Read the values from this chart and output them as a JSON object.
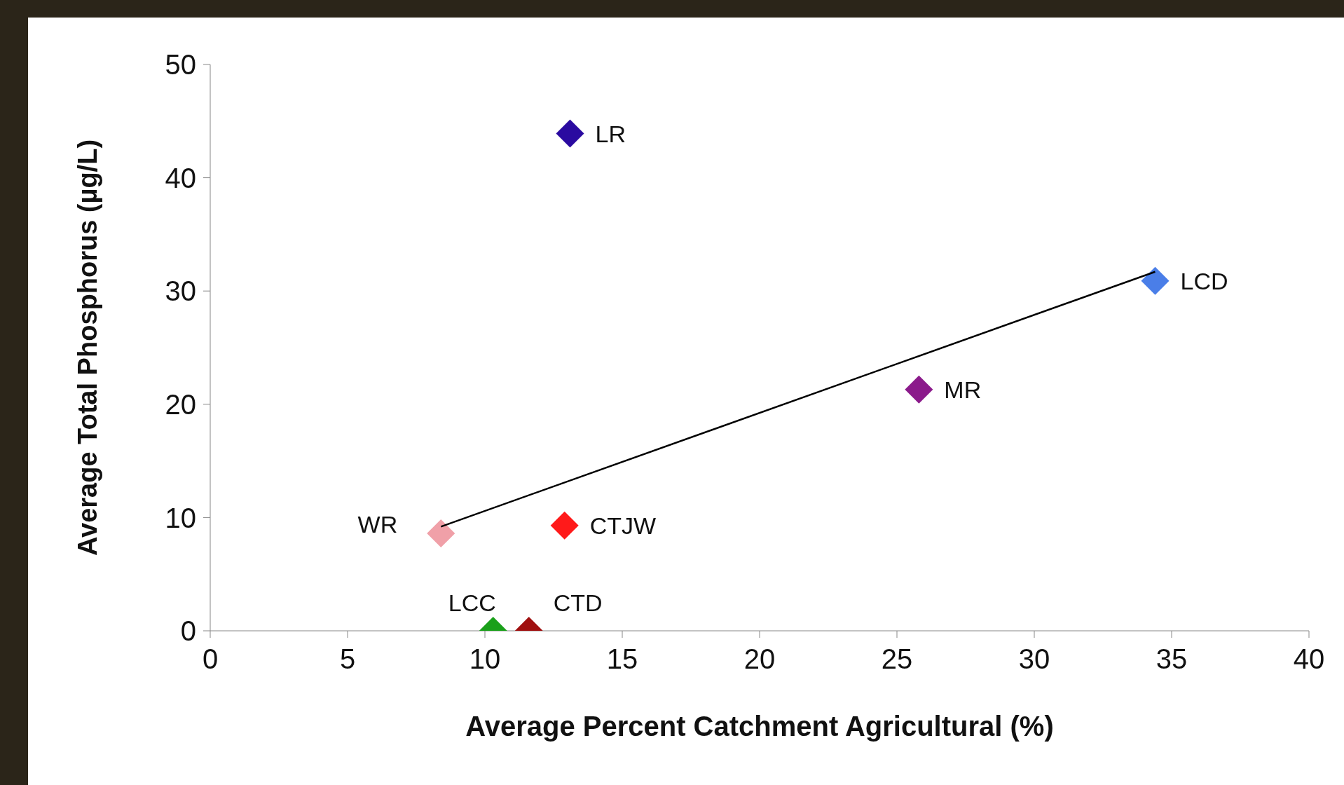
{
  "chart_data": {
    "type": "scatter",
    "xlabel": "Average Percent Catchment Agricultural (%)",
    "ylabel": "Average Total Phosphorus (µg/L)",
    "xlim": [
      0,
      40
    ],
    "xticks": [
      0,
      5,
      10,
      15,
      20,
      25,
      30,
      35,
      40
    ],
    "ylim": [
      0,
      50
    ],
    "yticks": [
      0,
      10,
      20,
      30,
      40,
      50
    ],
    "grid": false,
    "legend": false,
    "marker": "diamond",
    "series": [
      {
        "name": "LR",
        "color": "#2a0aa0",
        "x": [
          13.1
        ],
        "values": [
          43.9
        ]
      },
      {
        "name": "LCD",
        "color": "#4a7ee8",
        "x": [
          34.4
        ],
        "values": [
          30.9
        ]
      },
      {
        "name": "MR",
        "color": "#8b1a8b",
        "x": [
          25.8
        ],
        "values": [
          21.3
        ]
      },
      {
        "name": "WR",
        "color": "#f0a0a8",
        "x": [
          8.4
        ],
        "values": [
          8.6
        ]
      },
      {
        "name": "CTJW",
        "color": "#ff1a1a",
        "x": [
          12.9
        ],
        "values": [
          9.3
        ]
      },
      {
        "name": "LCC",
        "color": "#1aa01a",
        "x": [
          10.3
        ],
        "values": [
          0
        ]
      },
      {
        "name": "CTD",
        "color": "#a01010",
        "x": [
          11.6
        ],
        "values": [
          0
        ]
      },
      {
        "type": "line",
        "color": "#000000",
        "x": [
          8.4,
          34.4
        ],
        "values": [
          9.2,
          31.7
        ],
        "marker": "none"
      }
    ]
  }
}
